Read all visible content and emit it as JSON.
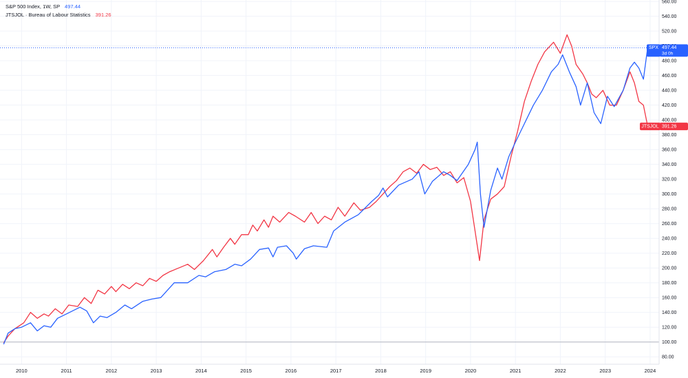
{
  "legend": [
    {
      "label": "S&P 500 Index, 1W, SP",
      "value": "497.44",
      "color": "#2962ff"
    },
    {
      "label": "JTSJOL · Bureau of Labour Statistics",
      "value": "391.26",
      "color": "#f23645"
    }
  ],
  "badges": {
    "spx": {
      "symbol": "SPX",
      "value": "497.44",
      "sub": "3d 0h",
      "color": "#2962ff"
    },
    "jts": {
      "symbol": "JTSJOL",
      "value": "391.26",
      "color": "#f23645"
    }
  },
  "chart_data": {
    "type": "line",
    "x_ticks": [
      "2010",
      "2011",
      "2012",
      "2013",
      "2014",
      "2015",
      "2016",
      "2017",
      "2018",
      "2019",
      "2020",
      "2021",
      "2022",
      "2023",
      "2024"
    ],
    "y_ticks": [
      "80.00",
      "100.00",
      "120.00",
      "140.00",
      "160.00",
      "180.00",
      "200.00",
      "220.00",
      "240.00",
      "260.00",
      "280.00",
      "300.00",
      "320.00",
      "340.00",
      "360.00",
      "380.00",
      "400.00",
      "420.00",
      "440.00",
      "460.00",
      "480.00",
      "500.00",
      "520.00",
      "540.00",
      "560.00"
    ],
    "ylim": [
      70,
      562
    ],
    "xlim": [
      2009.55,
      2024.2
    ],
    "baseline": 100,
    "grid": true,
    "legend_position": "top-left",
    "series": [
      {
        "name": "S&P 500 Index, 1W, SP",
        "color": "#2962ff",
        "x": [
          2009.6,
          2009.7,
          2009.85,
          2010.0,
          2010.2,
          2010.35,
          2010.5,
          2010.65,
          2010.8,
          2011.0,
          2011.3,
          2011.45,
          2011.6,
          2011.75,
          2011.9,
          2012.1,
          2012.3,
          2012.45,
          2012.7,
          2012.9,
          2013.1,
          2013.4,
          2013.7,
          2013.95,
          2014.1,
          2014.3,
          2014.55,
          2014.75,
          2014.9,
          2015.1,
          2015.3,
          2015.5,
          2015.6,
          2015.7,
          2015.9,
          2016.05,
          2016.12,
          2016.3,
          2016.5,
          2016.8,
          2016.95,
          2017.2,
          2017.5,
          2017.8,
          2017.95,
          2018.05,
          2018.15,
          2018.4,
          2018.7,
          2018.85,
          2018.98,
          2019.15,
          2019.4,
          2019.55,
          2019.7,
          2019.95,
          2020.1,
          2020.15,
          2020.22,
          2020.3,
          2020.45,
          2020.6,
          2020.7,
          2020.85,
          2021.0,
          2021.2,
          2021.4,
          2021.6,
          2021.8,
          2021.95,
          2022.05,
          2022.2,
          2022.35,
          2022.45,
          2022.6,
          2022.75,
          2022.9,
          2023.05,
          2023.2,
          2023.4,
          2023.55,
          2023.65,
          2023.75,
          2023.85,
          2023.95
        ],
        "values": [
          97,
          112,
          118,
          120,
          126,
          115,
          122,
          120,
          132,
          138,
          147,
          142,
          126,
          135,
          133,
          140,
          150,
          145,
          155,
          158,
          160,
          180,
          180,
          190,
          188,
          195,
          198,
          205,
          203,
          212,
          225,
          227,
          215,
          228,
          230,
          220,
          212,
          226,
          230,
          228,
          250,
          262,
          272,
          290,
          298,
          308,
          296,
          312,
          320,
          330,
          300,
          317,
          330,
          325,
          318,
          340,
          360,
          370,
          300,
          255,
          305,
          335,
          320,
          350,
          370,
          395,
          420,
          440,
          465,
          475,
          488,
          465,
          445,
          420,
          450,
          410,
          395,
          432,
          418,
          440,
          470,
          478,
          470,
          455,
          500
        ]
      },
      {
        "name": "JTSJOL · Bureau of Labour Statistics",
        "color": "#f23645",
        "x": [
          2009.6,
          2009.7,
          2009.85,
          2010.05,
          2010.2,
          2010.35,
          2010.5,
          2010.6,
          2010.75,
          2010.9,
          2011.05,
          2011.25,
          2011.4,
          2011.55,
          2011.7,
          2011.85,
          2012.0,
          2012.1,
          2012.25,
          2012.4,
          2012.55,
          2012.7,
          2012.85,
          2013.0,
          2013.15,
          2013.3,
          2013.5,
          2013.7,
          2013.85,
          2014.05,
          2014.25,
          2014.35,
          2014.5,
          2014.65,
          2014.75,
          2014.9,
          2015.05,
          2015.15,
          2015.25,
          2015.4,
          2015.5,
          2015.6,
          2015.75,
          2015.95,
          2016.1,
          2016.3,
          2016.45,
          2016.6,
          2016.75,
          2016.9,
          2017.05,
          2017.2,
          2017.4,
          2017.55,
          2017.75,
          2017.9,
          2018.05,
          2018.2,
          2018.35,
          2018.5,
          2018.65,
          2018.8,
          2018.95,
          2019.1,
          2019.25,
          2019.4,
          2019.55,
          2019.7,
          2019.85,
          2020.0,
          2020.1,
          2020.2,
          2020.3,
          2020.45,
          2020.6,
          2020.75,
          2020.9,
          2021.05,
          2021.2,
          2021.35,
          2021.5,
          2021.65,
          2021.85,
          2022.0,
          2022.15,
          2022.25,
          2022.35,
          2022.5,
          2022.6,
          2022.7,
          2022.8,
          2022.95,
          2023.1,
          2023.25,
          2023.4,
          2023.55,
          2023.65,
          2023.75,
          2023.85,
          2023.95
        ],
        "values": [
          99,
          108,
          118,
          126,
          140,
          132,
          138,
          135,
          145,
          138,
          150,
          148,
          160,
          152,
          170,
          165,
          175,
          168,
          178,
          172,
          180,
          176,
          186,
          182,
          190,
          195,
          200,
          205,
          198,
          210,
          225,
          215,
          228,
          240,
          232,
          245,
          245,
          258,
          250,
          265,
          255,
          270,
          262,
          275,
          270,
          262,
          275,
          260,
          270,
          265,
          282,
          270,
          288,
          278,
          282,
          290,
          300,
          310,
          318,
          330,
          335,
          328,
          340,
          333,
          336,
          325,
          330,
          315,
          322,
          290,
          250,
          210,
          265,
          293,
          300,
          310,
          350,
          385,
          425,
          452,
          475,
          492,
          505,
          490,
          515,
          500,
          475,
          462,
          450,
          435,
          430,
          440,
          420,
          420,
          440,
          465,
          450,
          425,
          420,
          390
        ]
      }
    ]
  }
}
